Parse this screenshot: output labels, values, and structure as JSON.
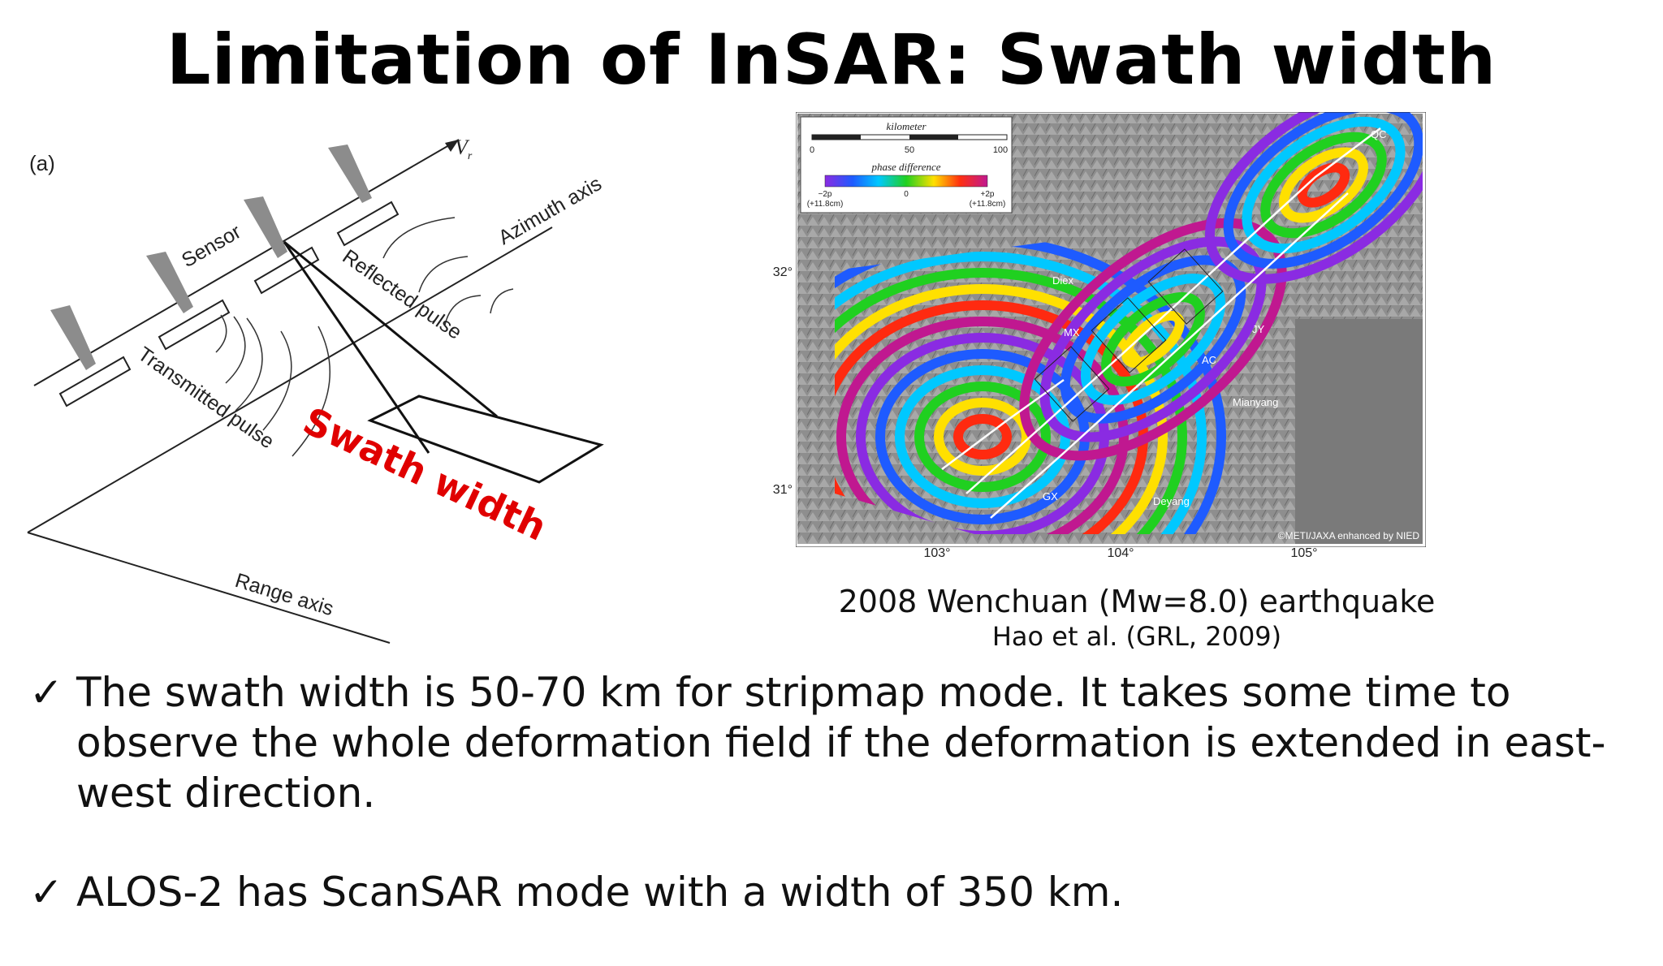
{
  "title": "Limitation of InSAR: Swath width",
  "diagram": {
    "panel_label": "(a)",
    "velocity_label": "V",
    "velocity_subscript": "r",
    "sensor_label": "Sensor",
    "azimuth_label": "Azimuth axis",
    "reflected_label": "Reflected pulse",
    "transmitted_label": "Transmitted pulse",
    "range_label": "Range axis",
    "swath_label": "Swath width",
    "swath_color": "#e00000"
  },
  "map": {
    "scale_title": "kilometer",
    "scale_ticks": [
      "0",
      "50",
      "100"
    ],
    "phase_title": "phase difference",
    "phase_min_label": "−2p",
    "phase_min_sub": "(+11.8cm)",
    "phase_mid_label": "0",
    "phase_max_label": "+2p",
    "phase_max_sub": "(+11.8cm)",
    "lat_labels": [
      "32°",
      "31°"
    ],
    "lon_labels": [
      "103°",
      "104°",
      "105°"
    ],
    "places": {
      "diex": "Diex",
      "mx": "MX",
      "jy": "JY",
      "ac": "AC",
      "mianyang": "Mianyang",
      "deyang": "Deyang",
      "gx": "GX",
      "qc": "QC"
    },
    "credit": "©METI/JAXA enhanced by NIED"
  },
  "caption": {
    "line1": "2008 Wenchuan (Mw=8.0) earthquake",
    "line2": "Hao et al. (GRL, 2009)"
  },
  "bullets": [
    {
      "check": "✓",
      "text": "The swath width is 50-70 km for stripmap mode. It takes some time to observe the whole deformation field if the deformation is extended in east-west direction."
    },
    {
      "check": "✓",
      "text": "ALOS-2 has ScanSAR mode with a width of 350 km."
    }
  ]
}
